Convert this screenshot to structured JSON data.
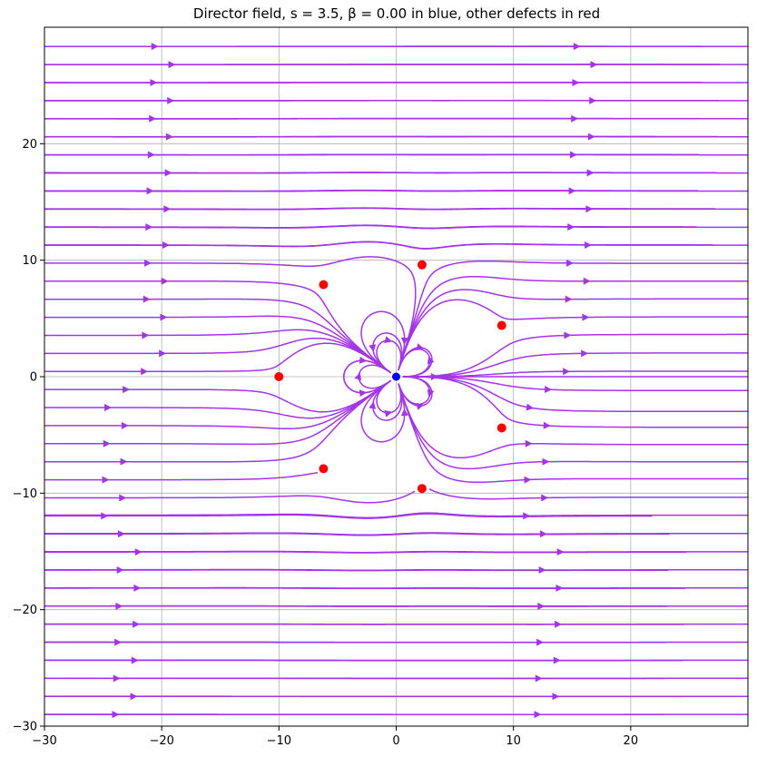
{
  "chart_data": {
    "type": "streamplot",
    "title": "Director field, s = 3.5, β = 0.00 in blue, other defects in red",
    "xlabel": "",
    "ylabel": "",
    "xlim": [
      -30,
      30
    ],
    "ylim": [
      -30,
      30
    ],
    "x_ticks": [
      -30,
      -20,
      -10,
      0,
      10,
      20
    ],
    "y_ticks": [
      -30,
      -20,
      -10,
      0,
      10,
      20
    ],
    "x_tick_labels": [
      "−30",
      "−20",
      "−10",
      "0",
      "10",
      "20"
    ],
    "y_tick_labels": [
      "−30",
      "−20",
      "−10",
      "0",
      "10",
      "20"
    ],
    "grid": true,
    "stream_color": "#a335e8",
    "main_defect": {
      "label": "β = 0.00",
      "color": "#0000ff",
      "x": 0,
      "y": 0
    },
    "other_defects": {
      "color": "#ff0000",
      "points": [
        {
          "x": -10.0,
          "y": 0.0
        },
        {
          "x": -6.2,
          "y": 7.9
        },
        {
          "x": -6.2,
          "y": -7.9
        },
        {
          "x": 2.2,
          "y": 9.6
        },
        {
          "x": 2.2,
          "y": -9.6
        },
        {
          "x": 9.0,
          "y": 4.4
        },
        {
          "x": 9.0,
          "y": -4.4
        }
      ]
    }
  }
}
